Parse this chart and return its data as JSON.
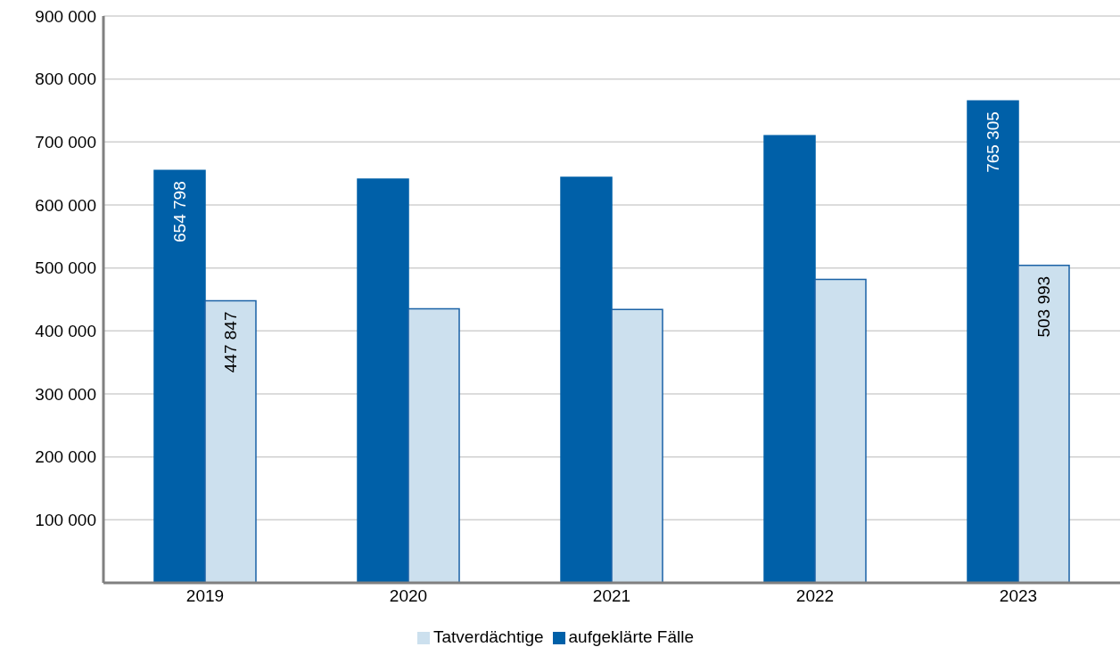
{
  "chart_data": {
    "type": "bar",
    "categories": [
      "2019",
      "2020",
      "2021",
      "2022",
      "2023"
    ],
    "series": [
      {
        "name": "aufgeklärte Fälle",
        "color": "#0060a8",
        "values": [
          654798,
          641000,
          644000,
          710000,
          765305
        ],
        "value_labels": [
          "654 798",
          null,
          null,
          null,
          "765 305"
        ]
      },
      {
        "name": "Tatverdächtige",
        "color": "#cce0ee",
        "values": [
          447847,
          435000,
          434000,
          482000,
          503993
        ],
        "value_labels": [
          "447 847",
          null,
          null,
          null,
          "503 993"
        ]
      }
    ],
    "ylim": [
      0,
      900000
    ],
    "yticks": [
      {
        "value": 100000,
        "label": "100 000"
      },
      {
        "value": 200000,
        "label": "200 000"
      },
      {
        "value": 300000,
        "label": "300 000"
      },
      {
        "value": 400000,
        "label": "400 000"
      },
      {
        "value": 500000,
        "label": "500 000"
      },
      {
        "value": 600000,
        "label": "600 000"
      },
      {
        "value": 700000,
        "label": "700 000"
      },
      {
        "value": 800000,
        "label": "800 000"
      },
      {
        "value": 900000,
        "label": "900 000"
      }
    ],
    "grid": "y",
    "legend": "bottom"
  }
}
